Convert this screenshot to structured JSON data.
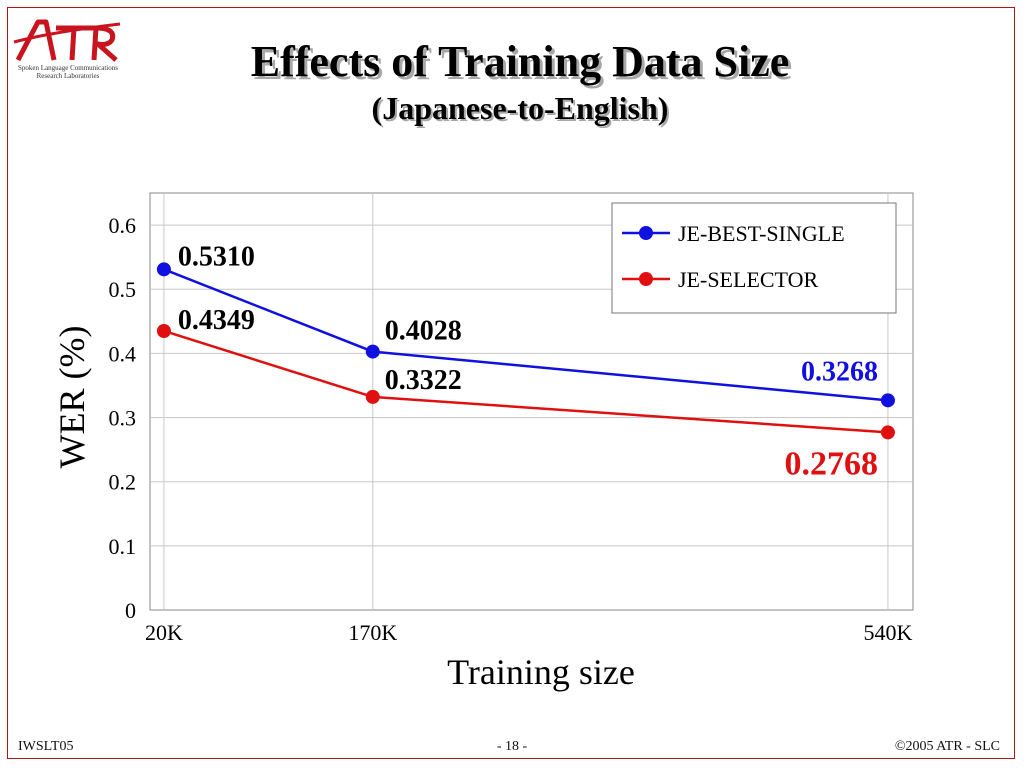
{
  "slide": {
    "title": "Effects of Training Data Size",
    "subtitle": "(Japanese-to-English)",
    "logo": {
      "text": "ATR",
      "subtext_line1": "Spoken Language Communications",
      "subtext_line2": "Research Laboratories"
    },
    "footer": {
      "left": "IWSLT05",
      "center": "- 18 -",
      "right": "©2005 ATR - SLC"
    },
    "colors": {
      "frame": "#b01818",
      "logo": "#c8141e"
    }
  },
  "chart_data": {
    "type": "line",
    "xlabel": "Training size",
    "ylabel": "WER (%)",
    "x": [
      "20K",
      "170K",
      "540K"
    ],
    "x_values": [
      20,
      170,
      540
    ],
    "xlim": [
      10,
      558
    ],
    "ylim": [
      0,
      0.65
    ],
    "yticks": [
      "0",
      "0.1",
      "0.2",
      "0.3",
      "0.4",
      "0.5",
      "0.6"
    ],
    "ytick_values": [
      0,
      0.1,
      0.2,
      0.3,
      0.4,
      0.5,
      0.6
    ],
    "grid": true,
    "legend_position": "top-right",
    "series": [
      {
        "name": "JE-BEST-SINGLE",
        "color": "#1010e0",
        "values": [
          0.531,
          0.4028,
          0.3268
        ],
        "labels": [
          "0.5310",
          "0.4028",
          "0.3268"
        ]
      },
      {
        "name": "JE-SELECTOR",
        "color": "#e01010",
        "values": [
          0.4349,
          0.3322,
          0.2768
        ],
        "labels": [
          "0.4349",
          "0.3322",
          "0.2768"
        ]
      }
    ]
  }
}
